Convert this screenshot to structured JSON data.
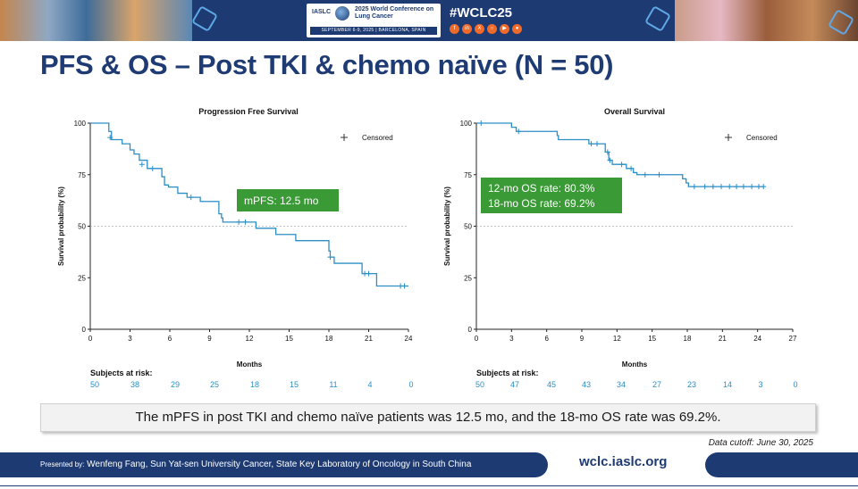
{
  "header": {
    "org": "IASLC",
    "conference": "2025 World Conference on Lung Cancer",
    "dates_location": "SEPTEMBER 6-9, 2025 | BARCELONA, SPAIN",
    "hashtag": "#WCLC25",
    "social_icons": [
      "facebook-icon",
      "linkedin-icon",
      "x-icon",
      "instagram-icon",
      "youtube-icon",
      "podcast-icon"
    ]
  },
  "slide": {
    "title": "PFS & OS – Post TKI & chemo naïve (N = 50)",
    "summary": "The mPFS in post TKI and chemo naïve patients was 12.5 mo, and the 18-mo OS rate was 69.2%.",
    "data_cutoff": "Data cutoff: June 30, 2025"
  },
  "footer": {
    "presenter_prefix": "Presented by:",
    "presenter": "Wenfeng Fang, Sun Yat-sen University Cancer, State Key Laboratory of Oncology in South China",
    "url": "wclc.iaslc.org"
  },
  "colors": {
    "navy": "#1d3a72",
    "curve": "#2b8fc6",
    "annotation_bg": "#3a9a35",
    "risk_numbers": "#2b8fc6"
  },
  "chart_data": [
    {
      "type": "line",
      "title": "Progression Free Survival",
      "xlabel": "Months",
      "ylabel": "Survival probability (%)",
      "xticks": [
        0,
        3,
        6,
        9,
        12,
        15,
        18,
        21,
        24
      ],
      "yticks": [
        0,
        25,
        50,
        75,
        100
      ],
      "xlim": [
        0,
        24
      ],
      "ylim": [
        0,
        100
      ],
      "reference_line_y": 50,
      "legend": "Censored",
      "legend_position": "top-right",
      "annotation": [
        "mPFS: 12.5 mo"
      ],
      "risk_label": "Subjects at risk:",
      "risk_numbers": [
        50,
        38,
        29,
        25,
        18,
        15,
        11,
        4,
        0
      ],
      "steps": [
        [
          0,
          100
        ],
        [
          1.3,
          100
        ],
        [
          1.4,
          96
        ],
        [
          1.6,
          92
        ],
        [
          2.4,
          90
        ],
        [
          3,
          87
        ],
        [
          3.3,
          85
        ],
        [
          3.7,
          82
        ],
        [
          4.3,
          78
        ],
        [
          5.4,
          74
        ],
        [
          5.6,
          70
        ],
        [
          5.9,
          69
        ],
        [
          6.6,
          66
        ],
        [
          7.3,
          64
        ],
        [
          8.3,
          62
        ],
        [
          9.7,
          56
        ],
        [
          9.9,
          54
        ],
        [
          10,
          52
        ],
        [
          11,
          52
        ],
        [
          12.1,
          52
        ],
        [
          12.5,
          49
        ],
        [
          14,
          46
        ],
        [
          15.5,
          43
        ],
        [
          18,
          38
        ],
        [
          18.1,
          35
        ],
        [
          18.4,
          32
        ],
        [
          20.3,
          32
        ],
        [
          20.5,
          27
        ],
        [
          21.6,
          21
        ],
        [
          24,
          21
        ]
      ],
      "censored": [
        [
          1.5,
          93
        ],
        [
          3.9,
          80
        ],
        [
          4.7,
          78
        ],
        [
          7.6,
          64
        ],
        [
          11.2,
          52
        ],
        [
          11.7,
          52
        ],
        [
          18.1,
          35
        ],
        [
          20.7,
          27
        ],
        [
          21,
          27
        ],
        [
          23.4,
          21
        ],
        [
          23.7,
          21
        ]
      ]
    },
    {
      "type": "line",
      "title": "Overall Survival",
      "xlabel": "Months",
      "ylabel": "Survival probability (%)",
      "xticks": [
        0,
        3,
        6,
        9,
        12,
        15,
        18,
        21,
        24,
        27
      ],
      "yticks": [
        0,
        25,
        50,
        75,
        100
      ],
      "xlim": [
        0,
        27
      ],
      "ylim": [
        0,
        100
      ],
      "reference_line_y": 50,
      "legend": "Censored",
      "legend_position": "top-right",
      "annotation": [
        "12-mo OS rate: 80.3%",
        "18-mo OS rate: 69.2%"
      ],
      "risk_label": "Subjects at risk:",
      "risk_numbers": [
        50,
        47,
        45,
        43,
        34,
        27,
        23,
        14,
        3,
        0
      ],
      "steps": [
        [
          0,
          100
        ],
        [
          2.8,
          100
        ],
        [
          3,
          98
        ],
        [
          3.4,
          96
        ],
        [
          6.7,
          96
        ],
        [
          6.9,
          94
        ],
        [
          7,
          92
        ],
        [
          9.4,
          92
        ],
        [
          9.6,
          90
        ],
        [
          10.8,
          90
        ],
        [
          11,
          86
        ],
        [
          11.3,
          82
        ],
        [
          11.6,
          80
        ],
        [
          12.6,
          80
        ],
        [
          12.8,
          78
        ],
        [
          13.4,
          76
        ],
        [
          13.7,
          75
        ],
        [
          17.5,
          75
        ],
        [
          17.6,
          73
        ],
        [
          17.9,
          71
        ],
        [
          18.1,
          69.2
        ],
        [
          24.6,
          69.2
        ]
      ],
      "censored": [
        [
          0.4,
          100
        ],
        [
          3.6,
          96
        ],
        [
          9.8,
          90
        ],
        [
          10.3,
          90
        ],
        [
          11.2,
          86
        ],
        [
          11.4,
          82
        ],
        [
          12.4,
          80
        ],
        [
          13.2,
          78
        ],
        [
          14.4,
          75
        ],
        [
          15.6,
          75
        ],
        [
          18.6,
          69.2
        ],
        [
          19.5,
          69.2
        ],
        [
          20.2,
          69.2
        ],
        [
          20.9,
          69.2
        ],
        [
          21.6,
          69.2
        ],
        [
          22.2,
          69.2
        ],
        [
          22.8,
          69.2
        ],
        [
          23.5,
          69.2
        ],
        [
          24.1,
          69.2
        ],
        [
          24.5,
          69.2
        ]
      ]
    }
  ]
}
